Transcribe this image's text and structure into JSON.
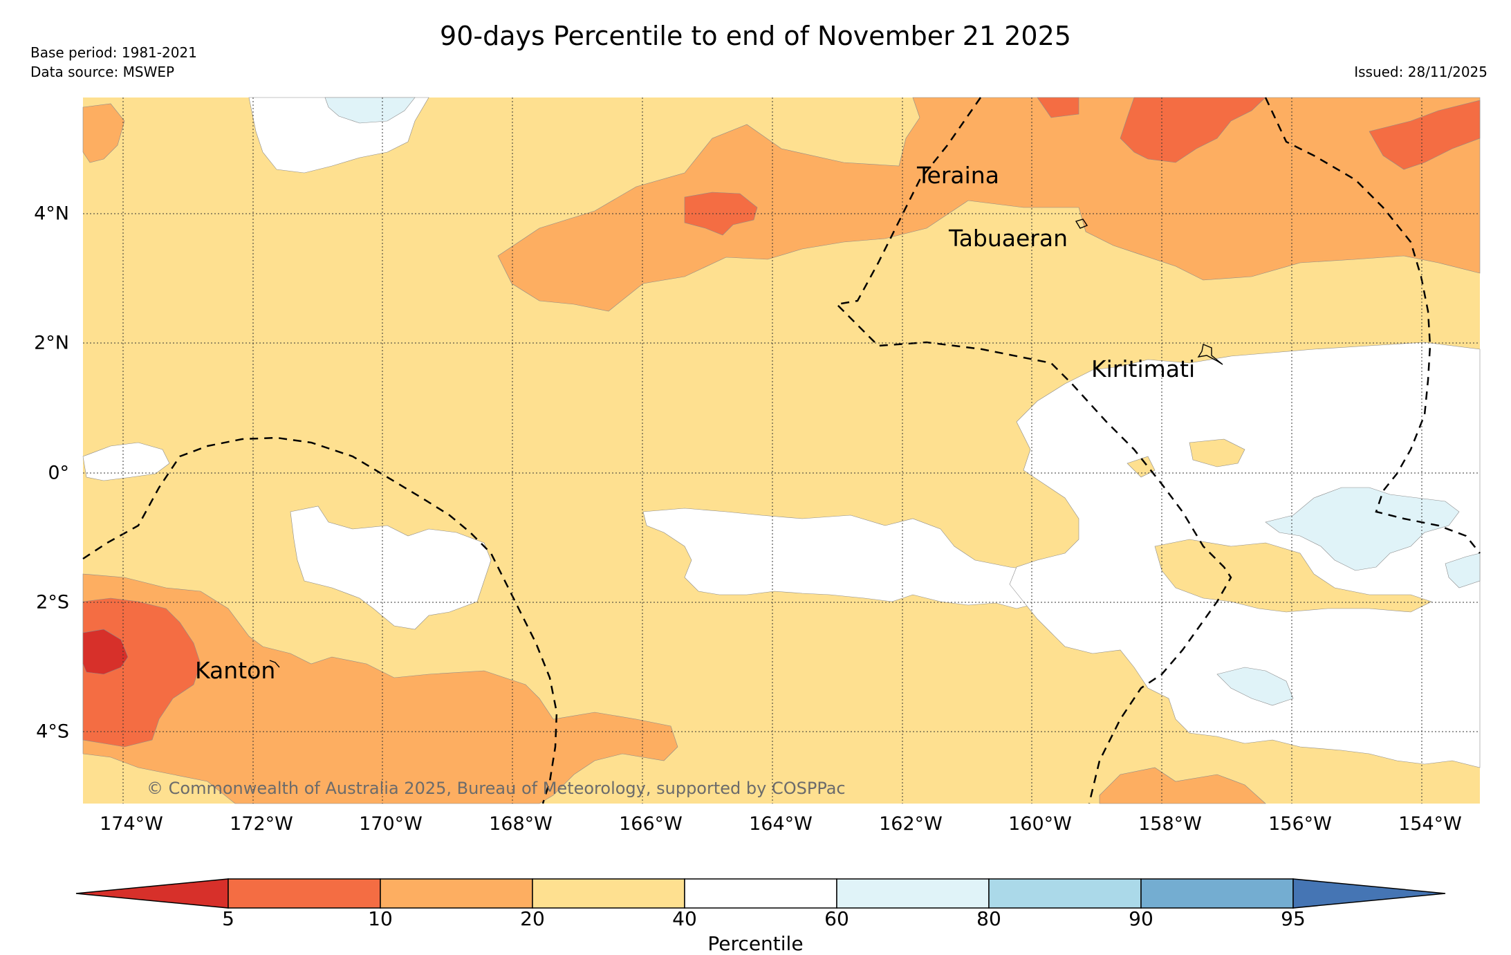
{
  "title": "90-days Percentile to end of November 21 2025",
  "base_period": "Base period: 1981-2021",
  "data_source": "Data source: MSWEP",
  "issued": "Issued: 28/11/2025",
  "longitude_labels": [
    "174°W",
    "172°W",
    "170°W",
    "168°W",
    "166°W",
    "164°W",
    "162°W",
    "160°W",
    "158°W",
    "156°W",
    "154°W"
  ],
  "latitude_labels": [
    "4°N",
    "2°N",
    "0°",
    "2°S",
    "4°S"
  ],
  "places": [
    "Teraina",
    "Tabuaeran",
    "Kiritimati",
    "Kanton"
  ],
  "copyright": "© Commonwealth of Australia 2025, Bureau of Meteorology, supported by COSPPac",
  "colorbar": {
    "label": "Percentile",
    "ticks": [
      "5",
      "10",
      "20",
      "40",
      "60",
      "80",
      "90",
      "95"
    ],
    "colors": [
      "#d7302a",
      "#f46d43",
      "#fdae61",
      "#fee090",
      "#ffffff",
      "#e0f3f8",
      "#abd9e9",
      "#74add1",
      "#4575b4"
    ]
  },
  "legend_colors": {
    "p5_10": "#f46d43",
    "p10_20": "#fdae61",
    "p20_40": "#fee090",
    "p40_60": "#ffffff",
    "p60_80": "#e0f3f8",
    "below_5": "#d7302a"
  }
}
